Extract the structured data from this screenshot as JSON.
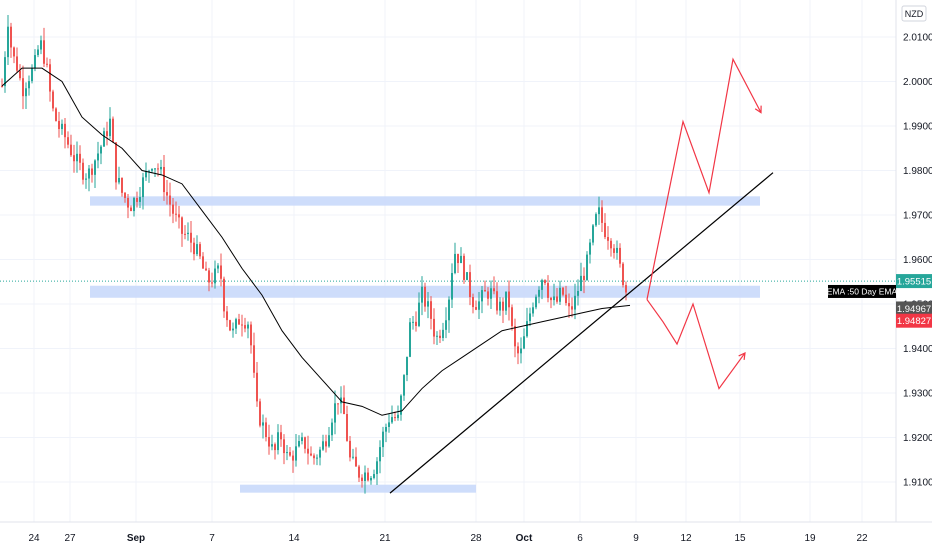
{
  "currency_badge": "NZD",
  "colors": {
    "up": "#26a69a",
    "down": "#ef5350",
    "ema": "#000000",
    "zone": "#c9d9fb",
    "trendline": "#000000",
    "projection": "#f23645",
    "price_line": "#26a69a",
    "grid": "#f0f3fa"
  },
  "price_labels": {
    "current": "1.95515",
    "ema": "1.94967",
    "bid": "1.94827"
  },
  "ema_legend": "EMA :50 Day EMA",
  "chart_data": {
    "type": "candlestick",
    "symbol_quote": "NZD",
    "y_ticks": [
      "2.01000",
      "2.00000",
      "1.99000",
      "1.98000",
      "1.97000",
      "1.96000",
      "1.95000",
      "1.94000",
      "1.93000",
      "1.92000",
      "1.91000"
    ],
    "ylim": [
      1.9033,
      2.0228
    ],
    "x_ticks": [
      {
        "label": "24",
        "t": 6
      },
      {
        "label": "27",
        "t": 42
      },
      {
        "label": "Sep",
        "t": 108,
        "bold": true
      },
      {
        "label": "7",
        "t": 184
      },
      {
        "label": "14",
        "t": 266
      },
      {
        "label": "21",
        "t": 357
      },
      {
        "label": "28",
        "t": 448
      },
      {
        "label": "Oct",
        "t": 496,
        "bold": true
      },
      {
        "label": "6",
        "t": 552
      },
      {
        "label": "9",
        "t": 608
      },
      {
        "label": "12",
        "t": 658
      },
      {
        "label": "15",
        "t": 712
      },
      {
        "label": "19",
        "t": 782
      },
      {
        "label": "22",
        "t": 834
      }
    ],
    "anchors": [
      [
        0,
        1.999
      ],
      [
        6,
        2.014
      ],
      [
        10,
        2.006
      ],
      [
        16,
        2.003
      ],
      [
        20,
        1.998
      ],
      [
        26,
        2.001
      ],
      [
        32,
        2.003
      ],
      [
        38,
        2.009
      ],
      [
        44,
        2.004
      ],
      [
        50,
        1.994
      ],
      [
        56,
        1.99
      ],
      [
        62,
        1.988
      ],
      [
        72,
        1.983
      ],
      [
        80,
        1.98
      ],
      [
        86,
        1.979
      ],
      [
        92,
        1.982
      ],
      [
        100,
        1.986
      ],
      [
        108,
        1.991
      ],
      [
        114,
        1.979
      ],
      [
        120,
        1.975
      ],
      [
        128,
        1.972
      ],
      [
        134,
        1.974
      ],
      [
        142,
        1.978
      ],
      [
        150,
        1.982
      ],
      [
        158,
        1.98
      ],
      [
        164,
        1.975
      ],
      [
        172,
        1.97
      ],
      [
        180,
        1.966
      ],
      [
        186,
        1.965
      ],
      [
        192,
        1.963
      ],
      [
        198,
        1.96
      ],
      [
        205,
        1.955
      ],
      [
        212,
        1.956
      ],
      [
        218,
        1.958
      ],
      [
        222,
        1.95
      ],
      [
        230,
        1.943
      ],
      [
        238,
        1.947
      ],
      [
        246,
        1.946
      ],
      [
        250,
        1.939
      ],
      [
        254,
        1.927
      ],
      [
        260,
        1.923
      ],
      [
        266,
        1.92
      ],
      [
        272,
        1.916
      ],
      [
        278,
        1.921
      ],
      [
        286,
        1.915
      ],
      [
        294,
        1.917
      ],
      [
        302,
        1.919
      ],
      [
        310,
        1.915
      ],
      [
        318,
        1.917
      ],
      [
        324,
        1.92
      ],
      [
        330,
        1.925
      ],
      [
        336,
        1.929
      ],
      [
        342,
        1.925
      ],
      [
        348,
        1.915
      ],
      [
        356,
        1.912
      ],
      [
        362,
        1.912
      ],
      [
        368,
        1.912
      ],
      [
        374,
        1.914
      ],
      [
        380,
        1.92
      ],
      [
        388,
        1.925
      ],
      [
        396,
        1.924
      ],
      [
        402,
        1.933
      ],
      [
        408,
        1.945
      ],
      [
        414,
        1.947
      ],
      [
        420,
        1.952
      ],
      [
        428,
        1.948
      ],
      [
        434,
        1.942
      ],
      [
        440,
        1.945
      ],
      [
        446,
        1.95
      ],
      [
        452,
        1.962
      ],
      [
        458,
        1.96
      ],
      [
        464,
        1.956
      ],
      [
        470,
        1.951
      ],
      [
        476,
        1.95
      ],
      [
        482,
        1.952
      ],
      [
        488,
        1.953
      ],
      [
        494,
        1.95
      ],
      [
        500,
        1.949
      ],
      [
        506,
        1.952
      ],
      [
        512,
        1.94
      ],
      [
        518,
        1.938
      ],
      [
        524,
        1.944
      ],
      [
        530,
        1.95
      ],
      [
        536,
        1.954
      ],
      [
        542,
        1.957
      ],
      [
        548,
        1.951
      ],
      [
        554,
        1.95
      ],
      [
        560,
        1.953
      ],
      [
        566,
        1.948
      ],
      [
        572,
        1.95
      ],
      [
        578,
        1.955
      ],
      [
        584,
        1.958
      ],
      [
        590,
        1.965
      ],
      [
        596,
        1.971
      ],
      [
        602,
        1.967
      ],
      [
        608,
        1.965
      ],
      [
        614,
        1.962
      ],
      [
        618,
        1.958
      ],
      [
        622,
        1.955
      ],
      [
        626,
        1.951
      ]
    ],
    "ema_anchors": [
      [
        0,
        1.999
      ],
      [
        20,
        2.003
      ],
      [
        40,
        2.003
      ],
      [
        60,
        2.0
      ],
      [
        80,
        1.992
      ],
      [
        100,
        1.988
      ],
      [
        120,
        1.985
      ],
      [
        140,
        1.98
      ],
      [
        160,
        1.979
      ],
      [
        180,
        1.977
      ],
      [
        200,
        1.971
      ],
      [
        220,
        1.965
      ],
      [
        240,
        1.958
      ],
      [
        260,
        1.952
      ],
      [
        280,
        1.944
      ],
      [
        300,
        1.938
      ],
      [
        320,
        1.933
      ],
      [
        340,
        1.928
      ],
      [
        360,
        1.927
      ],
      [
        380,
        1.925
      ],
      [
        400,
        1.926
      ],
      [
        420,
        1.931
      ],
      [
        440,
        1.935
      ],
      [
        460,
        1.938
      ],
      [
        480,
        1.941
      ],
      [
        500,
        1.944
      ],
      [
        520,
        1.945
      ],
      [
        540,
        1.946
      ],
      [
        560,
        1.947
      ],
      [
        580,
        1.948
      ],
      [
        600,
        1.949
      ],
      [
        620,
        1.9495
      ],
      [
        628,
        1.9497
      ]
    ],
    "zones": [
      {
        "t1": 70,
        "t2": 740,
        "low": 1.9721,
        "high": 1.9742
      },
      {
        "t1": 70,
        "t2": 740,
        "low": 1.9514,
        "high": 1.9541
      },
      {
        "t1": 220,
        "t2": 456,
        "low": 1.9076,
        "high": 1.9094
      }
    ],
    "trendline": {
      "from": [
        360,
        1.9075
      ],
      "to": [
        753,
        1.9795
      ]
    },
    "projection_bull": [
      [
        622,
        1.951
      ],
      [
        658,
        1.991
      ],
      [
        684,
        1.975
      ],
      [
        708,
        2.005
      ],
      [
        736,
        1.993
      ]
    ],
    "projection_bear": [
      [
        622,
        1.951
      ],
      [
        638,
        1.946
      ],
      [
        652,
        1.941
      ],
      [
        668,
        1.95
      ],
      [
        694,
        1.931
      ],
      [
        720,
        1.939
      ]
    ],
    "current_price": 1.95515,
    "ema_value": 1.94967,
    "bid_value": 1.94827
  }
}
